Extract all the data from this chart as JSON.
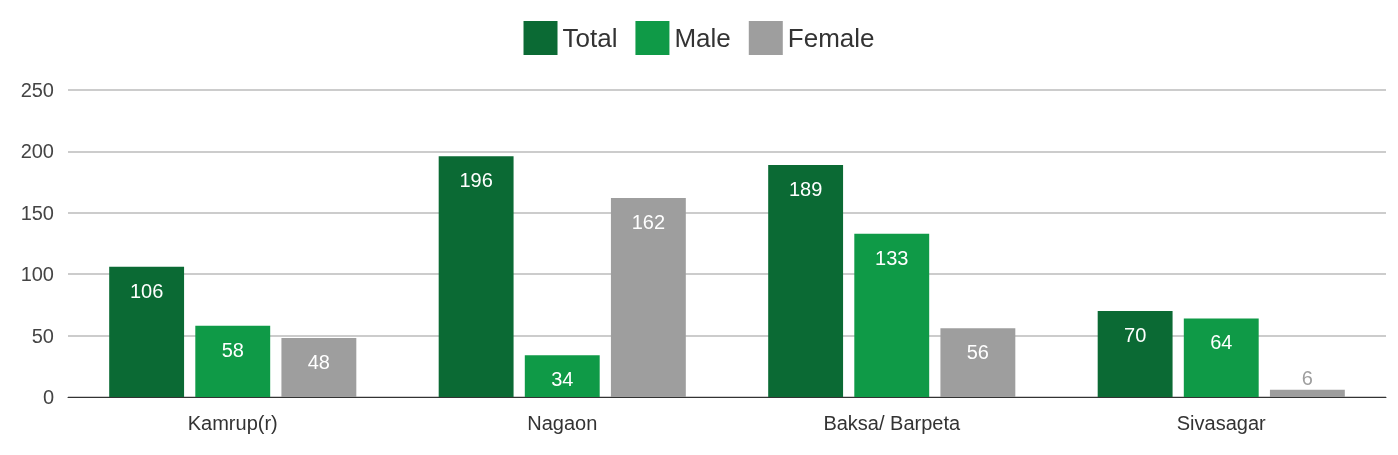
{
  "chart_data": {
    "type": "bar",
    "categories": [
      "Kamrup(r)",
      "Nagaon",
      "Baksa/ Barpeta",
      "Sivasagar"
    ],
    "series": [
      {
        "name": "Total",
        "color": "#0b6a34",
        "values": [
          106,
          196,
          189,
          70
        ]
      },
      {
        "name": "Male",
        "color": "#0f9a47",
        "values": [
          58,
          34,
          133,
          64
        ]
      },
      {
        "name": "Female",
        "color": "#9e9e9e",
        "values": [
          48,
          162,
          56,
          6
        ]
      }
    ],
    "ylim": [
      0,
      250
    ],
    "yticks": [
      0,
      50,
      100,
      150,
      200,
      250
    ],
    "grid": "y",
    "legend": "top",
    "data_labels": true
  }
}
